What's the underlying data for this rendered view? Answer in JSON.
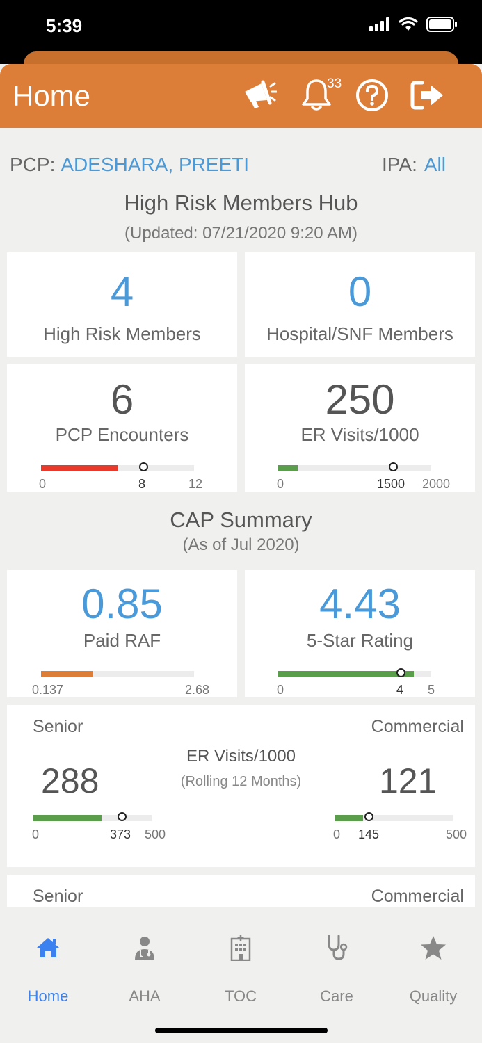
{
  "status": {
    "time": "5:39"
  },
  "header": {
    "title": "Home",
    "notification_count": "33"
  },
  "filters": {
    "pcp_label": "PCP:",
    "pcp_value": "ADESHARA, PREETI",
    "ipa_label": "IPA:",
    "ipa_value": "All"
  },
  "hub": {
    "title": "High Risk Members Hub",
    "updated": "(Updated: 07/21/2020 9:20 AM)"
  },
  "cards": {
    "high_risk": {
      "value": "4",
      "label": "High Risk Members"
    },
    "hospital": {
      "value": "0",
      "label": "Hospital/SNF Members"
    },
    "pcp_enc": {
      "value": "6",
      "label": "PCP Encounters",
      "min": "0",
      "target": "8",
      "max": "12",
      "fill_fraction": 0.5,
      "target_fraction": 0.667,
      "fill_color": "#e8392a"
    },
    "er_visits": {
      "value": "250",
      "label": "ER Visits/1000",
      "min": "0",
      "target": "1500",
      "max": "2000",
      "fill_fraction": 0.125,
      "target_fraction": 0.75,
      "fill_color": "#5a9e4b"
    }
  },
  "cap": {
    "title": "CAP Summary",
    "subtitle": "(As of Jul 2020)"
  },
  "cap_cards": {
    "paid_raf": {
      "value": "0.85",
      "label": "Paid RAF",
      "min": "0.137",
      "max": "2.68",
      "fill_fraction": 0.34,
      "fill_color": "#dc7e37"
    },
    "star": {
      "value": "4.43",
      "label": "5-Star Rating",
      "min": "0",
      "target": "4",
      "max": "5",
      "fill_fraction": 0.886,
      "target_fraction": 0.8,
      "fill_color": "#5a9e4b"
    }
  },
  "er_rolling": {
    "left_segment": "Senior",
    "right_segment": "Commercial",
    "title": "ER Visits/1000",
    "subtitle": "(Rolling 12 Months)",
    "senior": {
      "value": "288",
      "min": "0",
      "target": "373",
      "max": "500",
      "fill_fraction": 0.576,
      "target_fraction": 0.746
    },
    "commercial": {
      "value": "121",
      "min": "0",
      "target": "145",
      "max": "500",
      "fill_fraction": 0.242,
      "target_fraction": 0.29
    }
  },
  "next_card": {
    "left_segment": "Senior",
    "right_segment": "Commercial"
  },
  "tabs": [
    {
      "label": "Home",
      "icon": "home-icon",
      "active": true
    },
    {
      "label": "AHA",
      "icon": "doctor-icon",
      "active": false
    },
    {
      "label": "TOC",
      "icon": "hospital-icon",
      "active": false
    },
    {
      "label": "Care",
      "icon": "stethoscope-icon",
      "active": false
    },
    {
      "label": "Quality",
      "icon": "star-icon",
      "active": false
    }
  ],
  "colors": {
    "header": "#dc7e37",
    "link": "#4a9ad9",
    "active_tab": "#3b82f0"
  }
}
